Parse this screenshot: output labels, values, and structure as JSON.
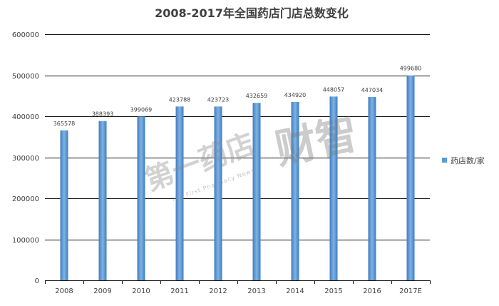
{
  "chart_data": {
    "type": "bar",
    "title": "2008-2017年全国药店门店总数变化",
    "xlabel": "",
    "ylabel": "",
    "categories": [
      "2008",
      "2009",
      "2010",
      "2011",
      "2012",
      "2013",
      "2014",
      "2015",
      "2016",
      "2017E"
    ],
    "series": [
      {
        "name": "药店数/家",
        "color": "#5b9bd5",
        "values": [
          365578,
          388393,
          399069,
          423788,
          423723,
          432659,
          434920,
          448057,
          447034,
          499680
        ]
      }
    ],
    "ylim": [
      0,
      600000
    ],
    "yticks": [
      0,
      100000,
      200000,
      300000,
      400000,
      500000,
      600000
    ],
    "grid": true,
    "legend": "right",
    "data_labels": true
  },
  "watermark": {
    "main": "第一药店",
    "secondary": "财智",
    "subtitle": "The First Pharmacy News"
  }
}
